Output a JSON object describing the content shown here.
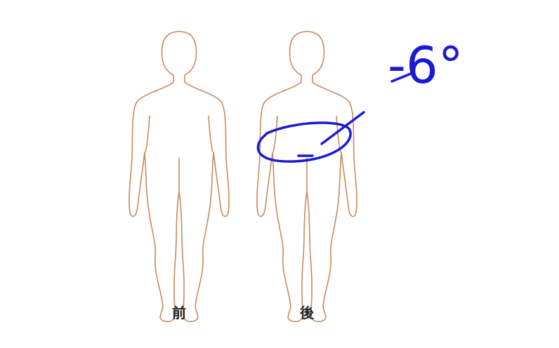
{
  "figures": [
    {
      "label": "前"
    },
    {
      "label": "後"
    }
  ],
  "annotation": {
    "text": "-6°"
  }
}
